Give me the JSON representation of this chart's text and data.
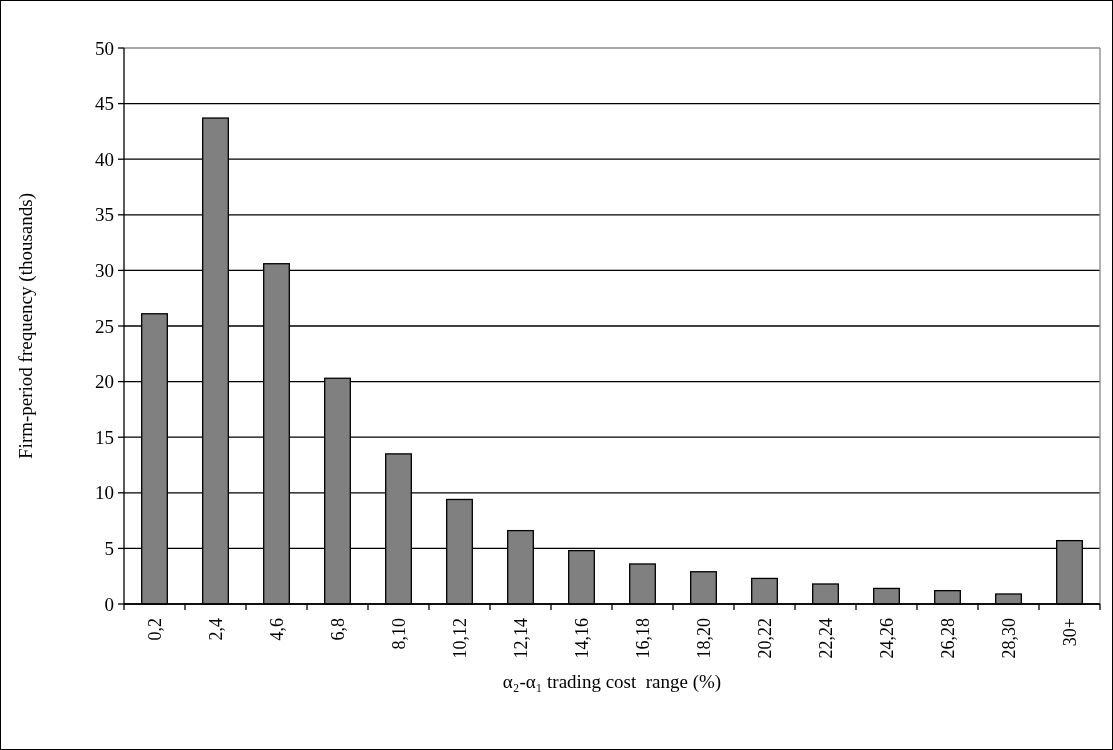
{
  "chart_data": {
    "type": "bar",
    "xlabel": "α₂-α₁ trading cost  range (%)",
    "ylabel": "Firm-period frequency (thousands)",
    "categories": [
      "0,2",
      "2,4",
      "4,6",
      "6,8",
      "8,10",
      "10,12",
      "12,14",
      "14,16",
      "16,18",
      "18,20",
      "20,22",
      "22,24",
      "24,26",
      "26,28",
      "28,30",
      "30+"
    ],
    "values": [
      26.1,
      43.7,
      30.6,
      20.3,
      13.5,
      9.4,
      6.6,
      4.8,
      3.6,
      2.9,
      2.3,
      1.8,
      1.4,
      1.2,
      0.9,
      5.7
    ],
    "color": "#808080",
    "ylim": [
      0,
      50
    ],
    "yticks": [
      0,
      5,
      10,
      15,
      20,
      25,
      30,
      35,
      40,
      45,
      50
    ],
    "grid": "y"
  }
}
